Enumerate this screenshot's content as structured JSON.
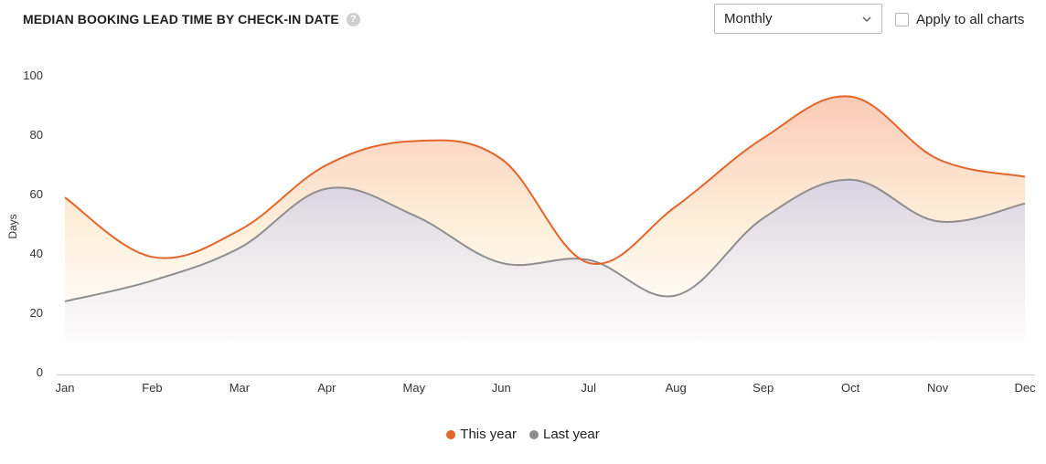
{
  "header": {
    "title": "MEDIAN BOOKING LEAD TIME BY CHECK-IN DATE",
    "help_icon": "question-circle-icon"
  },
  "controls": {
    "period_select": "Monthly",
    "apply_label": "Apply to all charts",
    "apply_checked": false
  },
  "colors": {
    "this_year": "#e2652b",
    "last_year": "#8e8e8e"
  },
  "chart_data": {
    "type": "area",
    "title": "MEDIAN BOOKING LEAD TIME BY CHECK-IN DATE",
    "xlabel": "",
    "ylabel": "Days",
    "categories": [
      "Jan",
      "Feb",
      "Mar",
      "Apr",
      "May",
      "Jun",
      "Jul",
      "Aug",
      "Sep",
      "Oct",
      "Nov",
      "Dec"
    ],
    "yticks": [
      0,
      20,
      40,
      60,
      80,
      100
    ],
    "ylim": [
      0,
      100
    ],
    "grid": false,
    "legend_position": "bottom",
    "series": [
      {
        "name": "This year",
        "color": "#e2652b",
        "values": [
          59,
          39,
          48,
          70,
          78,
          72,
          37,
          56,
          79,
          93,
          72,
          66
        ]
      },
      {
        "name": "Last year",
        "color": "#8e8e8e",
        "values": [
          24,
          31,
          42,
          62,
          53,
          37,
          38,
          26,
          52,
          65,
          51,
          57
        ]
      }
    ]
  }
}
